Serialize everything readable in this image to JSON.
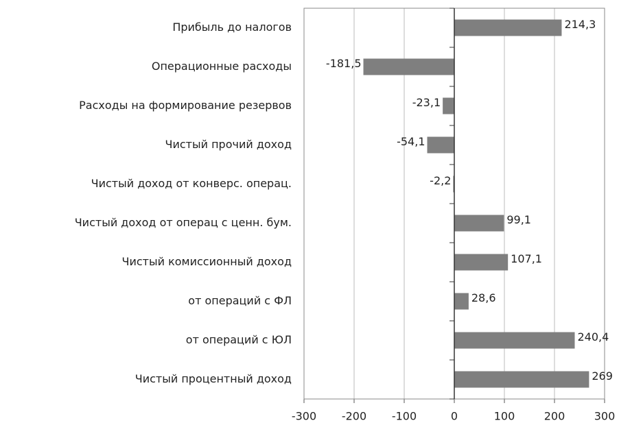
{
  "chart_data": {
    "type": "barh",
    "categories": [
      "Прибыль до налогов",
      "Операционные расходы",
      "Расходы на формирование резервов",
      "Чистый прочий доход",
      "Чистый доход от конверс. операц.",
      "Чистый доход от операц с ценн. бум.",
      "Чистый комиссионный доход",
      "от операций с ФЛ",
      "от операций с ЮЛ",
      "Чистый процентный доход"
    ],
    "values": [
      214.3,
      -181.5,
      -23.1,
      -54.1,
      -2.2,
      99.1,
      107.1,
      28.6,
      240.4,
      269
    ],
    "value_labels": [
      "214,3",
      "-181,5",
      "-23,1",
      "-54,1",
      "-2,2",
      "99,1",
      "107,1",
      "28,6",
      "240,4",
      "269"
    ],
    "color": "#7f7f7f",
    "xlim": [
      -300,
      300
    ],
    "xticks": [
      -300,
      -200,
      -100,
      0,
      100,
      200,
      300
    ],
    "grid": true
  }
}
